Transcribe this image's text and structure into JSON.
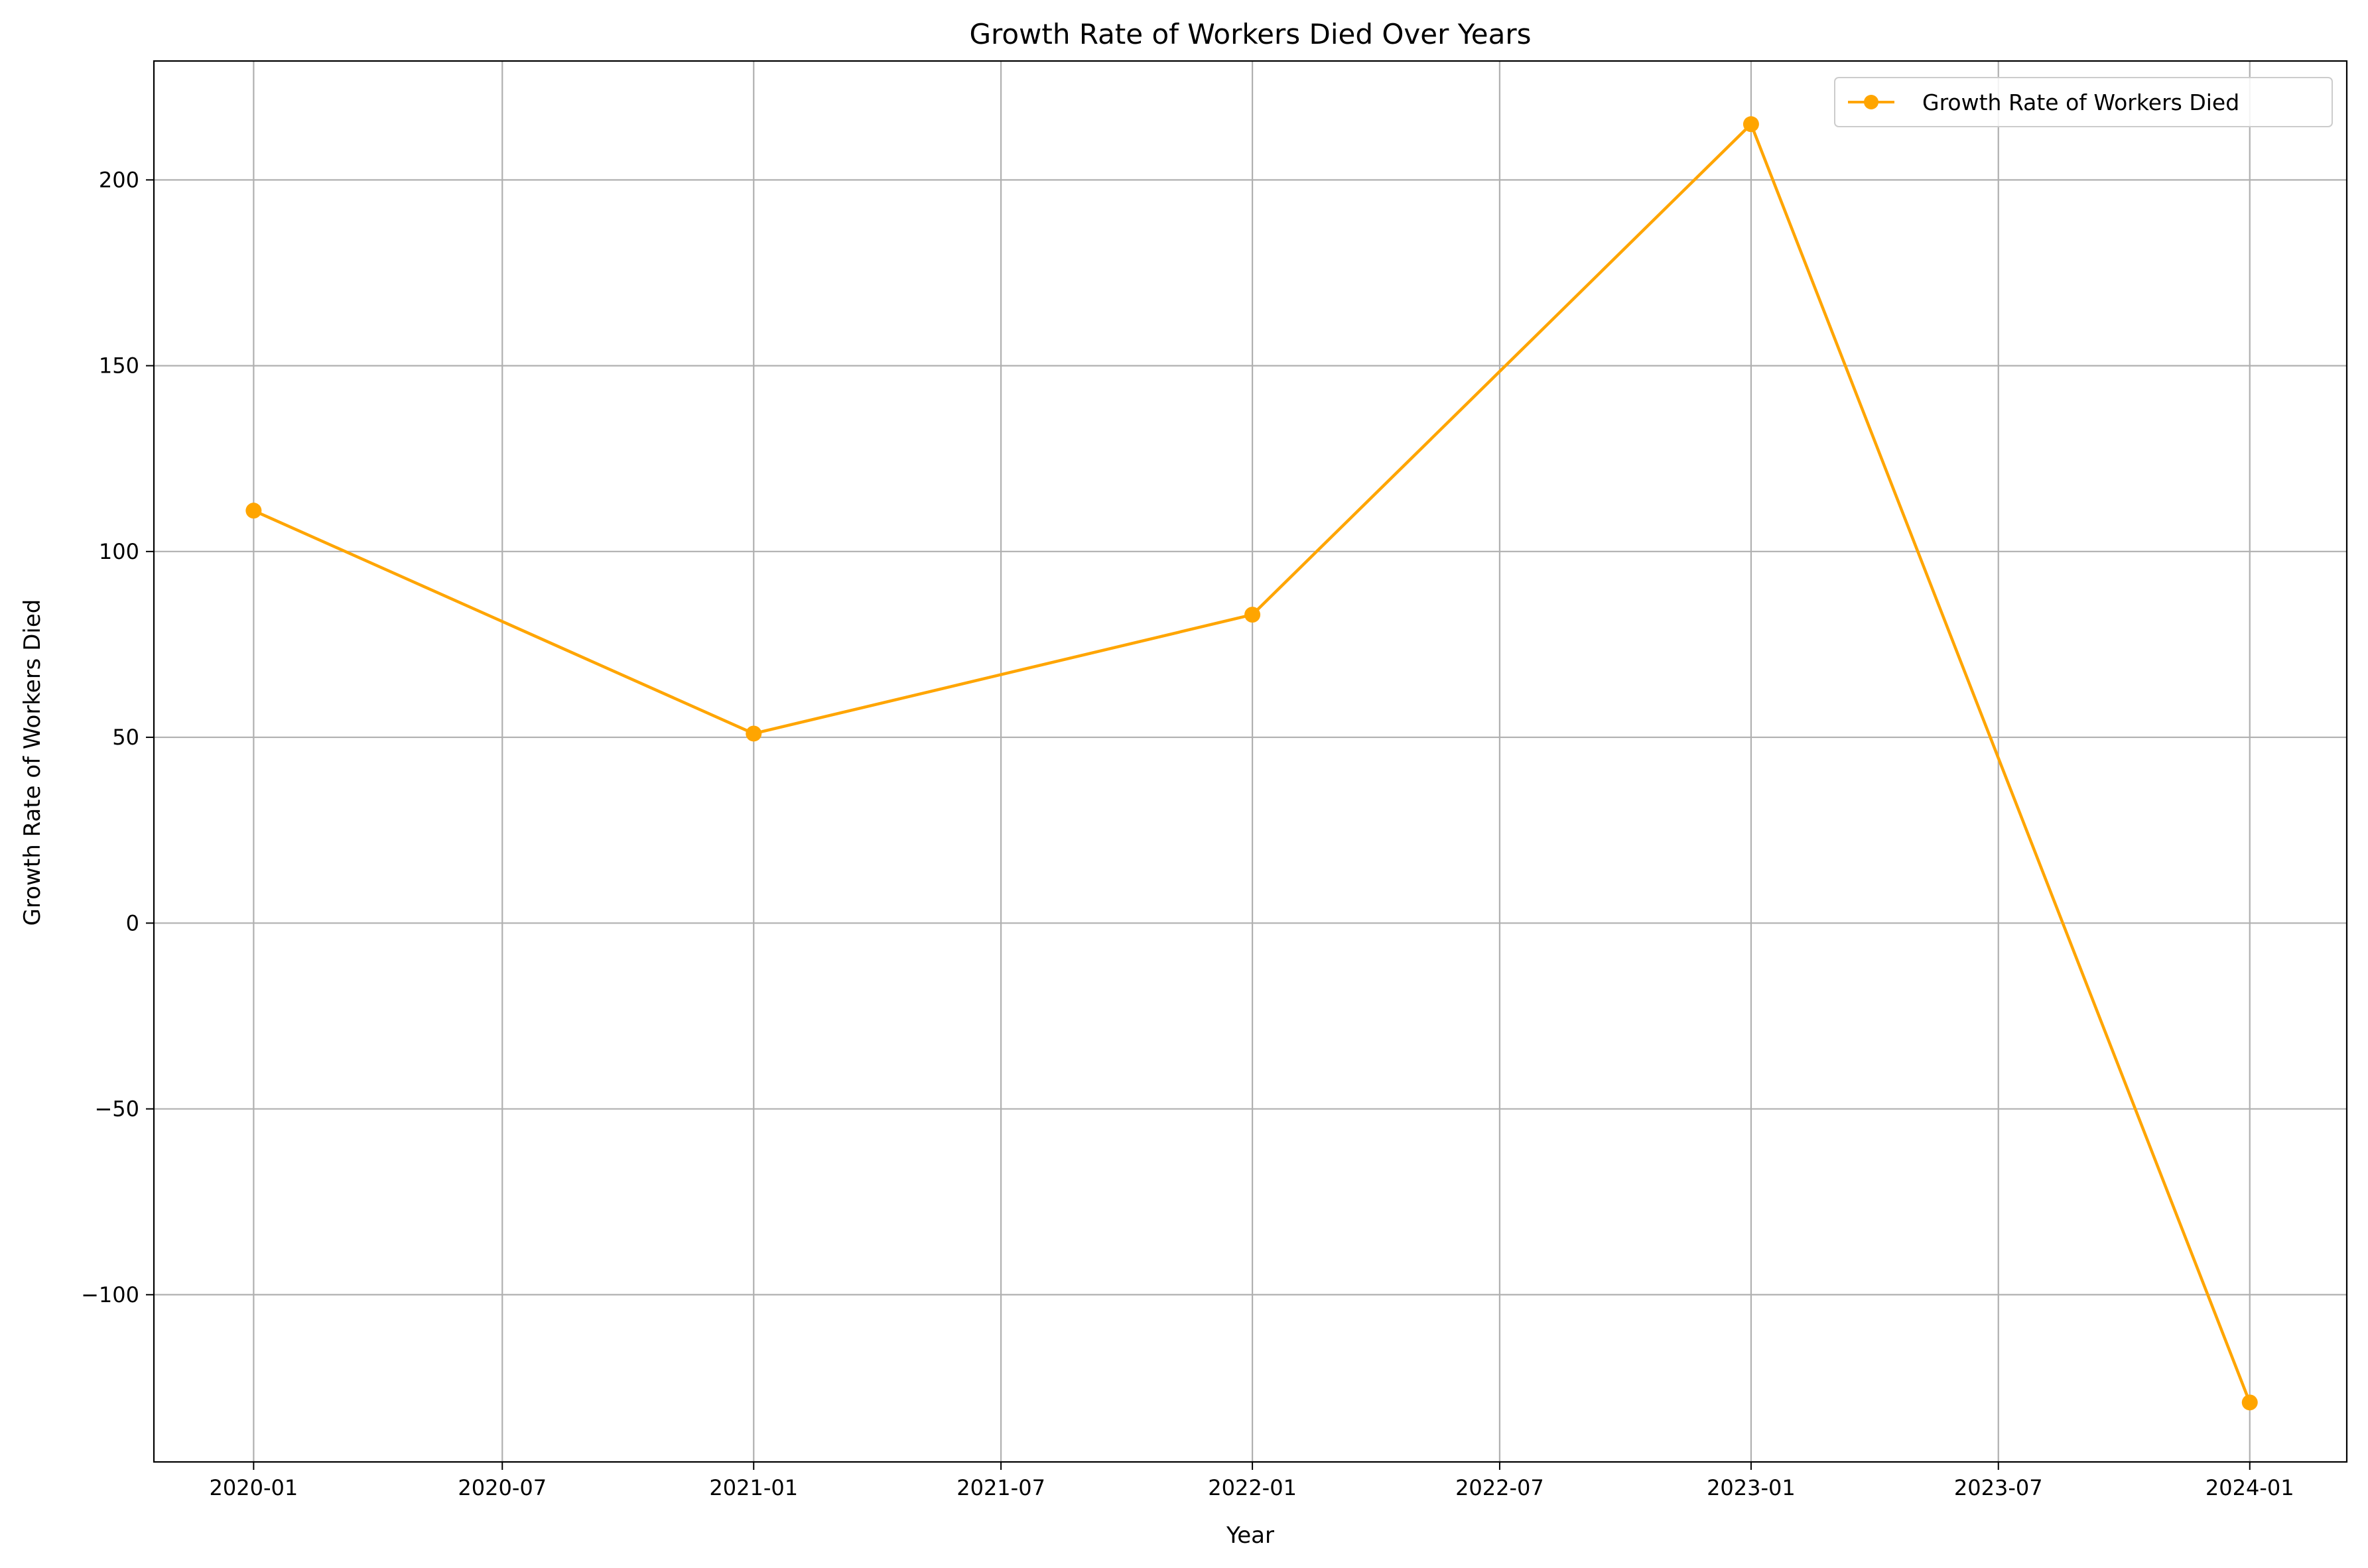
{
  "chart_data": {
    "type": "line",
    "title": "Growth Rate of Workers Died Over Years",
    "xlabel": "Year",
    "ylabel": "Growth Rate of Workers Died",
    "x_tick_labels": [
      "2020-01",
      "2020-07",
      "2021-01",
      "2021-07",
      "2022-01",
      "2022-07",
      "2023-01",
      "2023-07",
      "2024-01"
    ],
    "y_ticks": [
      -100,
      -50,
      0,
      50,
      100,
      150,
      200
    ],
    "y_tick_labels": [
      "−100",
      "−50",
      "0",
      "50",
      "100",
      "150",
      "200"
    ],
    "ylim": [
      -145,
      232
    ],
    "xlim": [
      "2019-10-20",
      "2024-03-12"
    ],
    "grid": true,
    "legend_position": "top-right",
    "series": [
      {
        "name": "Growth Rate of Workers Died",
        "color": "#ffa500",
        "marker": "circle",
        "points": [
          {
            "x": "2020-01",
            "y": 111
          },
          {
            "x": "2021-01",
            "y": 51
          },
          {
            "x": "2022-01",
            "y": 83
          },
          {
            "x": "2023-01",
            "y": 215
          },
          {
            "x": "2024-01",
            "y": -129
          }
        ]
      }
    ]
  }
}
